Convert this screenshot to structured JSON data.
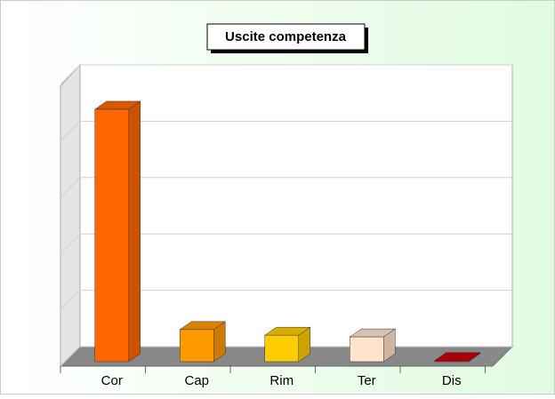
{
  "chart_data": {
    "type": "bar3d",
    "title": "Uscite competenza",
    "categories": [
      "Cor",
      "Cap",
      "Rim",
      "Ter",
      "Dis"
    ],
    "values": [
      4.48,
      0.57,
      0.47,
      0.44,
      0.02
    ],
    "colors": [
      "#ff6600",
      "#ff9900",
      "#ffcc00",
      "#ffe4cc",
      "#cc0000"
    ],
    "ylim": [
      0,
      5
    ],
    "yticks": [
      0,
      1,
      2,
      3,
      4,
      5
    ],
    "grid": true
  }
}
